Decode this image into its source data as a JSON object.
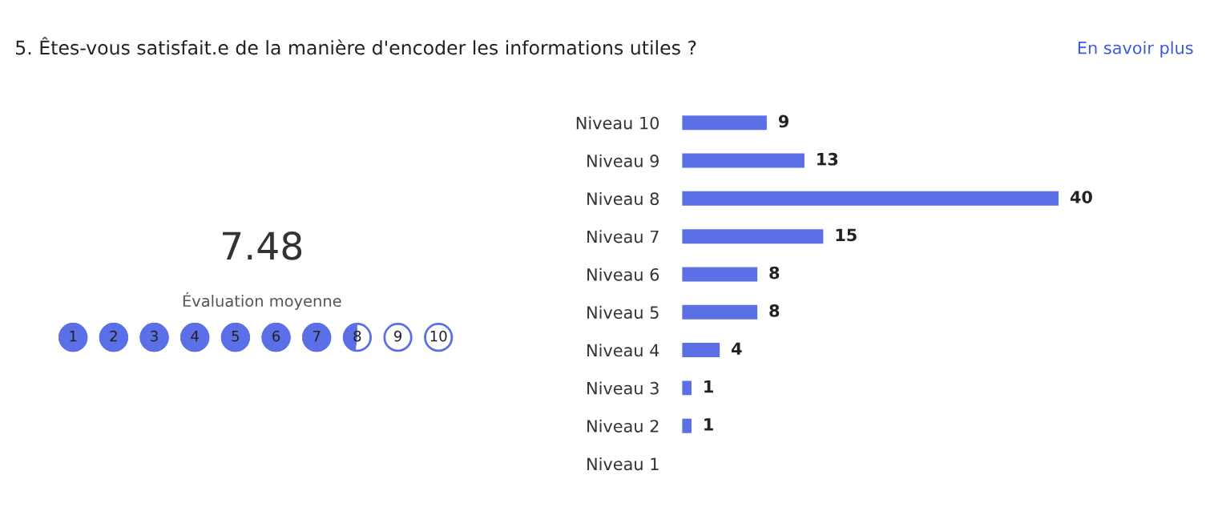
{
  "chart_data": {
    "type": "bar",
    "orientation": "horizontal",
    "title": "5. Êtes-vous satisfait.e de la manière d'encoder les informations utiles ?",
    "categories": [
      "Niveau 10",
      "Niveau 9",
      "Niveau 8",
      "Niveau 7",
      "Niveau 6",
      "Niveau 5",
      "Niveau 4",
      "Niveau 3",
      "Niveau 2",
      "Niveau 1"
    ],
    "values": [
      9,
      13,
      40,
      15,
      8,
      8,
      4,
      1,
      1,
      null
    ],
    "color": "#5b6fe6",
    "data_labels": true,
    "grid": false,
    "legend": false,
    "annotations": [
      "En savoir plus",
      "7.48",
      "Évaluation moyenne",
      "1",
      "2",
      "3",
      "4",
      "5",
      "6",
      "7",
      "8",
      "9",
      "10"
    ]
  }
}
